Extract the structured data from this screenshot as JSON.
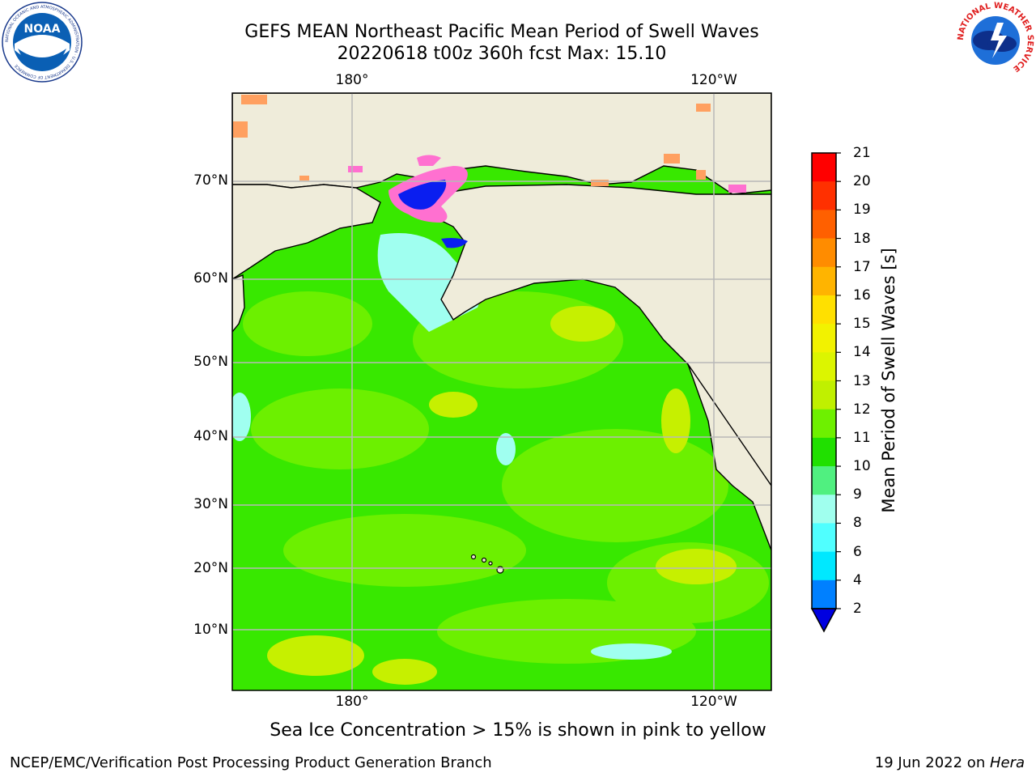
{
  "title": {
    "line1": "GEFS MEAN Northeast Pacific Mean Period of Swell Waves",
    "line2": "20220618 t00z 360h fcst   Max: 15.10"
  },
  "map": {
    "lat_labels": [
      "70°N",
      "60°N",
      "50°N",
      "40°N",
      "30°N",
      "20°N",
      "10°N"
    ],
    "lon_labels_top": [
      "180°",
      "120°W"
    ],
    "lon_labels_bottom": [
      "180°",
      "120°W"
    ],
    "colors": {
      "land": "#efecda",
      "ocean_main": "#38e800",
      "ocean_light": "#6cf000",
      "ocean_yellow": "#c6f000",
      "ocean_cyan": "#a0fff0",
      "ocean_blue": "#0a1ef0",
      "ice_pink": "#ff70d0",
      "ice_orange": "#ffa060",
      "grid": "#b8b8b8"
    }
  },
  "colorbar": {
    "label": "Mean Period of Swell Waves [s]",
    "ticks": [
      "21",
      "20",
      "19",
      "18",
      "17",
      "16",
      "15",
      "14",
      "13",
      "12",
      "11",
      "10",
      "9",
      "8",
      "6",
      "4",
      "2"
    ],
    "colors": [
      "#ff0000",
      "#ff3000",
      "#ff6000",
      "#ff8c00",
      "#ffb400",
      "#ffe000",
      "#f2f200",
      "#dcf500",
      "#c0f000",
      "#6ef000",
      "#20e000",
      "#50f080",
      "#a0ffee",
      "#50ffff",
      "#00e8ff",
      "#0080ff",
      "#0000e0"
    ]
  },
  "note": "Sea Ice Concentration > 15% is shown in pink to yellow",
  "footer": {
    "left": "NCEP/EMC/Verification Post Processing Product Generation Branch",
    "right_date": "19 Jun 2022 on ",
    "right_host": "Hera"
  },
  "logos": {
    "noaa_text": "NOAA",
    "noaa_ring_text": "NATIONAL OCEANIC AND ATMOSPHERIC ADMINISTRATION · U.S. DEPARTMENT OF COMMERCE",
    "nws_ring_text": "NATIONAL WEATHER SERVICE"
  }
}
